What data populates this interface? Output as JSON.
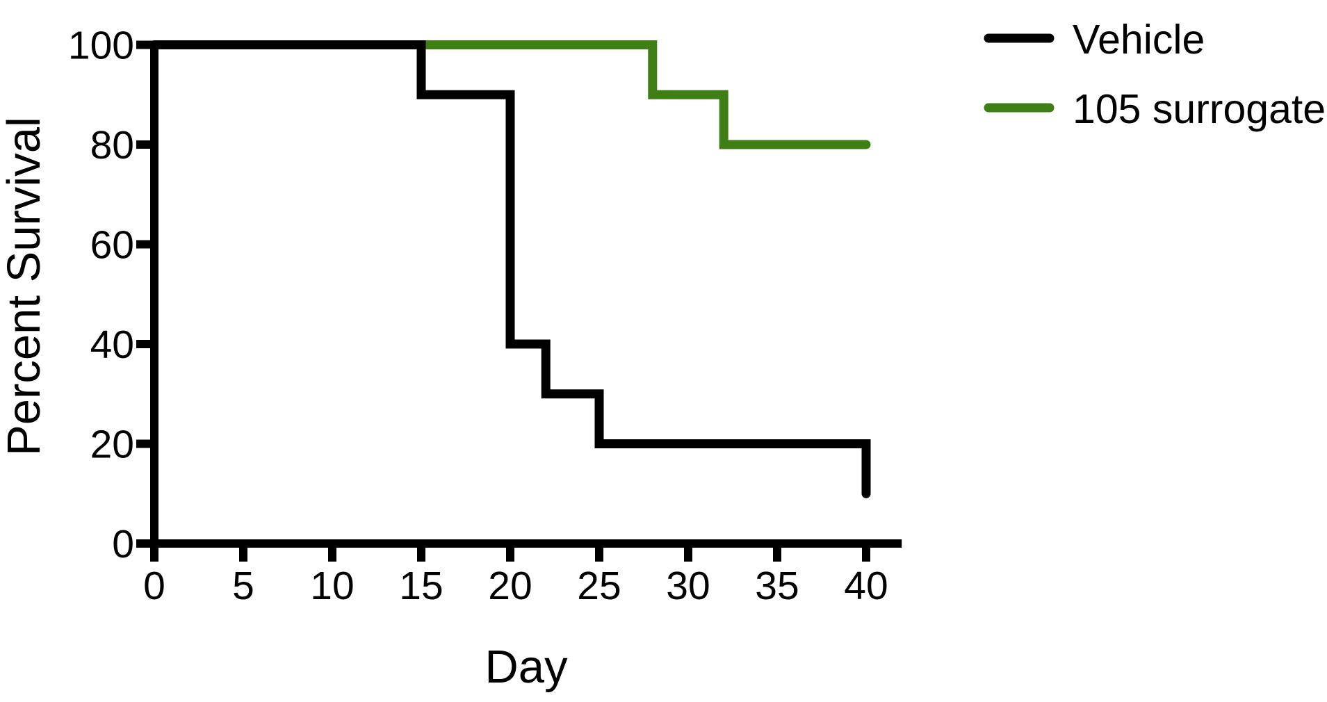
{
  "figure": {
    "background": "#ffffff",
    "axis_color": "#000000"
  },
  "chart_data": {
    "type": "line",
    "subtype": "kaplan-meier-survival-step",
    "title": "",
    "xlabel": "Day",
    "ylabel": "Percent Survival",
    "xlim": [
      0,
      42
    ],
    "ylim": [
      0,
      100
    ],
    "xticks": [
      0,
      5,
      10,
      15,
      20,
      25,
      30,
      35,
      40
    ],
    "yticks": [
      0,
      20,
      40,
      60,
      80,
      100
    ],
    "grid": false,
    "legend_position": "outside-top-right",
    "series": [
      {
        "name": "Vehicle",
        "color": "#000000",
        "steps": [
          [
            0,
            100
          ],
          [
            15,
            100
          ],
          [
            15,
            90
          ],
          [
            20,
            90
          ],
          [
            20,
            40
          ],
          [
            22,
            40
          ],
          [
            22,
            30
          ],
          [
            25,
            30
          ],
          [
            25,
            20
          ],
          [
            40,
            20
          ],
          [
            40,
            10
          ]
        ]
      },
      {
        "name": "105 surrogate",
        "color": "#3f7e14",
        "steps": [
          [
            0,
            100
          ],
          [
            28,
            100
          ],
          [
            28,
            90
          ],
          [
            32,
            90
          ],
          [
            32,
            80
          ],
          [
            40,
            80
          ]
        ]
      }
    ]
  }
}
